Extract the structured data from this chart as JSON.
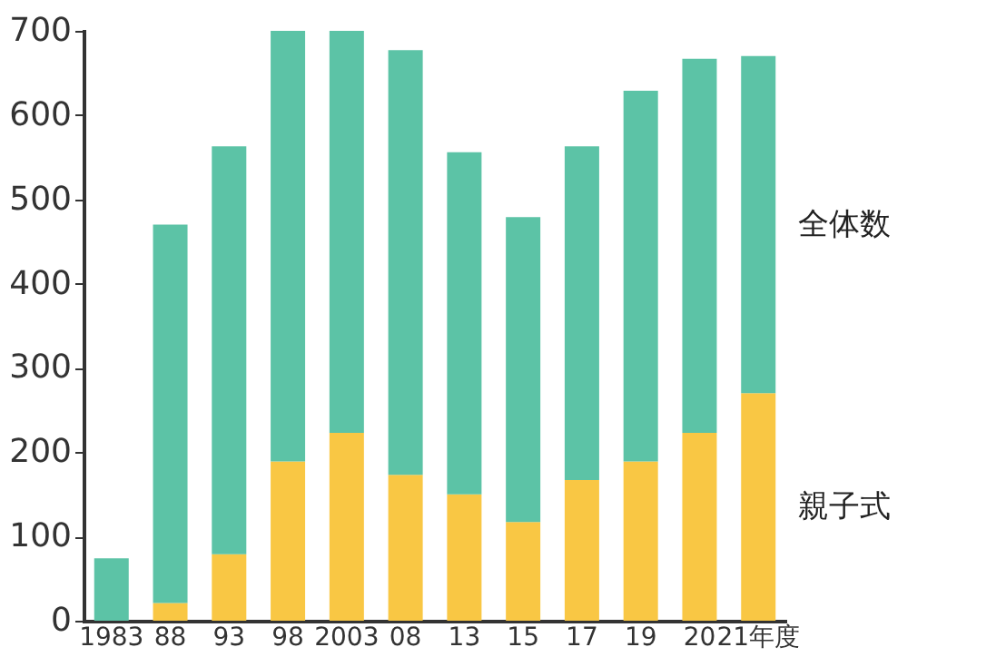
{
  "chart_data": {
    "type": "bar",
    "stacked": true,
    "categories": [
      "1983",
      "88",
      "93",
      "98",
      "2003",
      "08",
      "13",
      "15",
      "17",
      "19",
      "20",
      "21年度"
    ],
    "series": [
      {
        "name": "親子式",
        "color": "#f9c744",
        "values": [
          0,
          21,
          79,
          189,
          223,
          173,
          150,
          117,
          167,
          189,
          223,
          270
        ]
      },
      {
        "name": "全体数",
        "color": "#5cc3a6",
        "values": [
          74,
          449,
          484,
          511,
          477,
          504,
          406,
          362,
          396,
          440,
          444,
          400
        ]
      }
    ],
    "ylim": [
      0,
      700
    ],
    "yticks": [
      0,
      100,
      200,
      300,
      400,
      500,
      600,
      700
    ],
    "grid": false,
    "legend": "right"
  }
}
